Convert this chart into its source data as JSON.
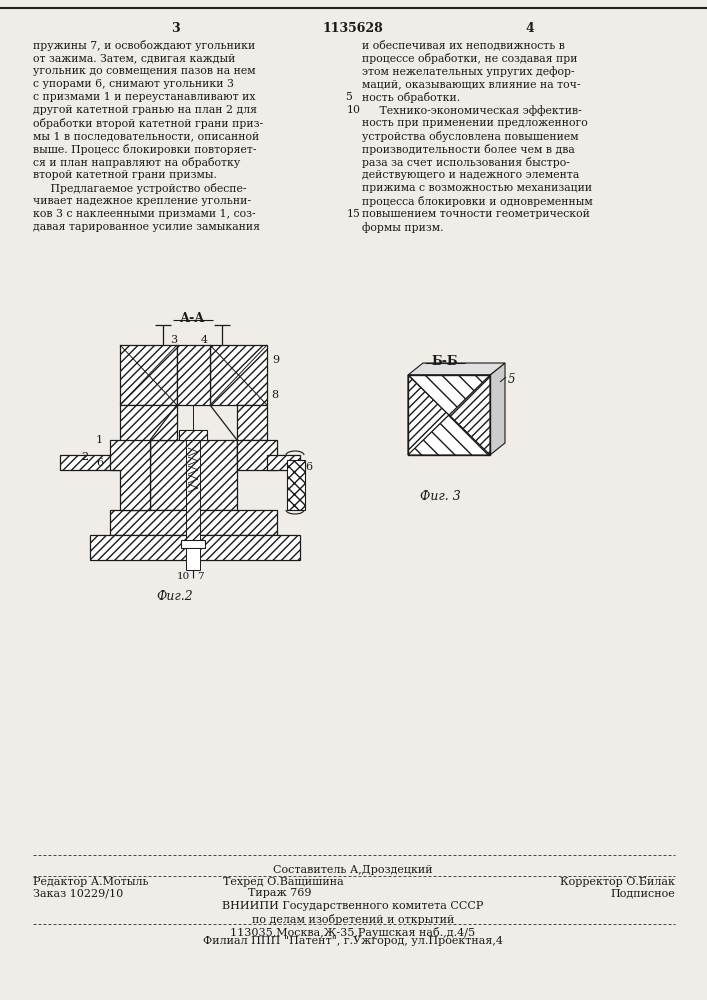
{
  "bg_color": "#f0ede8",
  "text_color": "#1a1a1a",
  "page_number_left": "3",
  "patent_number": "1135628",
  "page_number_right": "4",
  "col1_lines": [
    "пружины 7, и освобождают угольники",
    "от зажима. Затем, сдвигая каждый",
    "угольник до совмещения пазов на нем",
    "с упорами 6, снимают угольники 3",
    "с призмами 1 и переустанавливают их",
    "другой катетной гранью на план 2 для",
    "обработки второй катетной грани приз-",
    "мы 1 в последовательности, описанной",
    "выше. Процесс блокировки повторяет-",
    "ся и план направляют на обработку",
    "второй катетной грани призмы.",
    "     Предлагаемое устройство обеспе-",
    "чивает надежное крепление угольни-",
    "ков 3 с наклеенными призмами 1, соз-",
    "давая тарированное усилие замыкания"
  ],
  "col1_line_numbers": [
    null,
    null,
    null,
    null,
    null,
    null,
    null,
    null,
    null,
    null,
    null,
    null,
    null,
    null,
    null
  ],
  "col2_lines": [
    "и обеспечивая их неподвижность в",
    "процессе обработки, не создавая при",
    "этом нежелательных упругих дефор-",
    "маций, оказывающих влияние на точ-",
    "ность обработки.",
    "     Технико-экономическая эффектив-",
    "ность при применении предложенного",
    "устройства обусловлена повышением",
    "производительности более чем в два",
    "раза за счет использования быстро-",
    "действующего и надежного элемента",
    "прижима с возможностью механизации",
    "процесса блокировки и одновременным",
    "повышением точности геометрической",
    "формы призм."
  ],
  "col2_line_numbers": [
    null,
    null,
    null,
    null,
    null,
    "10",
    null,
    null,
    null,
    null,
    null,
    null,
    null,
    "15",
    null
  ],
  "col2_line5_num": "5",
  "footer_sestavitel": "Составитель А,Дроздецкий",
  "footer_editor": "Редактор А.Мотыль",
  "footer_tekhred": "Техред О.Ващишина",
  "footer_korrektor": "Корректор О.Билак",
  "footer_zakaz": "Заказ 10229/10",
  "footer_tirazh": "Тираж 769",
  "footer_podpisnoe": "Подписное",
  "footer_vniipи": "ВНИИПИ Государственного комитета СССР",
  "footer_po_delam": "по делам изобретений и открытий",
  "footer_address": "113035,Москва,Ж-35,Раушская наб.,д.4/5",
  "footer_filial": "Филиал ППП \"Патент\", г.Ужгород, ул.Проектная,4",
  "fig2_label": "Фиг.2",
  "fig3_label": "Фиг. 3",
  "section_aa": "А-А",
  "section_bb": "Б-Б"
}
